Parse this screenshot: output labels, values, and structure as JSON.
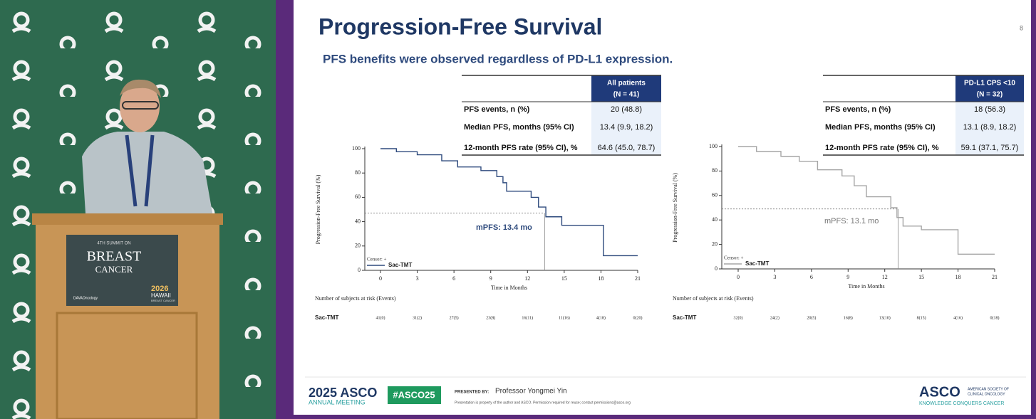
{
  "podium": {
    "summit": "4TH SUMMIT ON",
    "line1": "BREAST",
    "line2": "CANCER",
    "year": "2026",
    "place": "HAWAII",
    "place_sub": "BREAST CANCER",
    "sponsor": "DAVAOncology"
  },
  "slide": {
    "page_number": "8",
    "title": "Progression-Free Survival",
    "subtitle": "PFS benefits were observed regardless of PD-L1 expression.",
    "tables": [
      {
        "header": [
          "All patients",
          "(N = 41)"
        ],
        "rows": [
          [
            "PFS events, n (%)",
            "20 (48.8)"
          ],
          [
            "Median PFS, months (95% CI)",
            "13.4 (9.9, 18.2)"
          ],
          [
            "12-month PFS rate (95% CI), %",
            "64.6 (45.0, 78.7)"
          ]
        ]
      },
      {
        "header": [
          "PD-L1 CPS <10",
          "(N = 32)"
        ],
        "rows": [
          [
            "PFS events, n (%)",
            "18 (56.3)"
          ],
          [
            "Median PFS, months (95% CI)",
            "13.1 (8.9, 18.2)"
          ],
          [
            "12-month PFS rate (95% CI), %",
            "59.1 (37.1, 75.7)"
          ]
        ]
      }
    ],
    "at_risk": [
      {
        "title": "Number of subjects at risk (Events)",
        "label": "Sac-TMT",
        "values": [
          "41(0)",
          "31(2)",
          "27(5)",
          "23(8)",
          "16(11)",
          "11(16)",
          "4(18)",
          "0(20)"
        ]
      },
      {
        "title": "Number of subjects at risk (Events)",
        "label": "Sac-TMT",
        "values": [
          "32(0)",
          "24(2)",
          "20(5)",
          "16(8)",
          "13(10)",
          "8(15)",
          "4(16)",
          "0(18)"
        ]
      }
    ],
    "footer": {
      "asco_year": "2025 ASCO",
      "meeting": "ANNUAL MEETING",
      "hashtag": "#ASCO25",
      "presented_by": "PRESENTED BY:",
      "presenter": "Professor Yongmei Yin",
      "disclaimer": "Presentation is property of the author and ASCO. Permission required for reuse; contact permissions@asco.org",
      "logo": "ASCO",
      "society1": "AMERICAN SOCIETY OF",
      "society2": "CLINICAL ONCOLOGY",
      "tagline": "KNOWLEDGE CONQUERS CANCER"
    }
  },
  "chart_data": [
    {
      "type": "line",
      "ylabel": "Progression-Free Survival (%)",
      "xlabel": "Time in Months",
      "legend_title": "Censor: +",
      "annotation": "mPFS: 13.4 mo",
      "median_line": {
        "x": 13.4,
        "y": 47
      },
      "xlim": [
        0,
        21
      ],
      "xticks": [
        0,
        3,
        6,
        9,
        12,
        15,
        18,
        21
      ],
      "ylim": [
        0,
        100
      ],
      "yticks": [
        0,
        20,
        40,
        60,
        80,
        100
      ],
      "series": [
        {
          "name": "Sac-TMT",
          "color": "#2e4a7d",
          "x": [
            0,
            1.3,
            1.3,
            3,
            3,
            5,
            5,
            6.3,
            6.3,
            8.2,
            8.2,
            9.5,
            9.5,
            10,
            10,
            10.3,
            10.3,
            12.3,
            12.3,
            12.9,
            12.9,
            13.5,
            13.5,
            14.8,
            14.8,
            18.2,
            18.2,
            21
          ],
          "values": [
            100,
            100,
            97.5,
            97.5,
            95,
            95,
            90,
            90,
            85,
            85,
            82,
            82,
            77,
            77,
            72,
            72,
            65,
            65,
            60,
            60,
            52,
            52,
            44,
            44,
            37,
            37,
            12,
            12
          ]
        }
      ]
    },
    {
      "type": "line",
      "ylabel": "Progression-Free Survival (%)",
      "xlabel": "Time in Months",
      "legend_title": "Censor: +",
      "annotation": "mPFS: 13.1 mo",
      "median_line": {
        "x": 13.1,
        "y": 49
      },
      "xlim": [
        0,
        21
      ],
      "xticks": [
        0,
        3,
        6,
        9,
        12,
        15,
        18,
        21
      ],
      "ylim": [
        0,
        100
      ],
      "yticks": [
        0,
        20,
        40,
        60,
        80,
        100
      ],
      "series": [
        {
          "name": "Sac-TMT",
          "color": "#a6a6a6",
          "x": [
            0,
            1.5,
            1.5,
            3.5,
            3.5,
            5,
            5,
            6.5,
            6.5,
            8.5,
            8.5,
            9.5,
            9.5,
            10.5,
            10.5,
            12.5,
            12.5,
            13,
            13,
            13.5,
            13.5,
            15,
            15,
            18,
            18,
            21
          ],
          "values": [
            100,
            100,
            96,
            96,
            92,
            92,
            88,
            88,
            81,
            81,
            76,
            76,
            68,
            68,
            59,
            59,
            50,
            50,
            42,
            42,
            35,
            35,
            32,
            32,
            12,
            12
          ]
        }
      ]
    }
  ]
}
